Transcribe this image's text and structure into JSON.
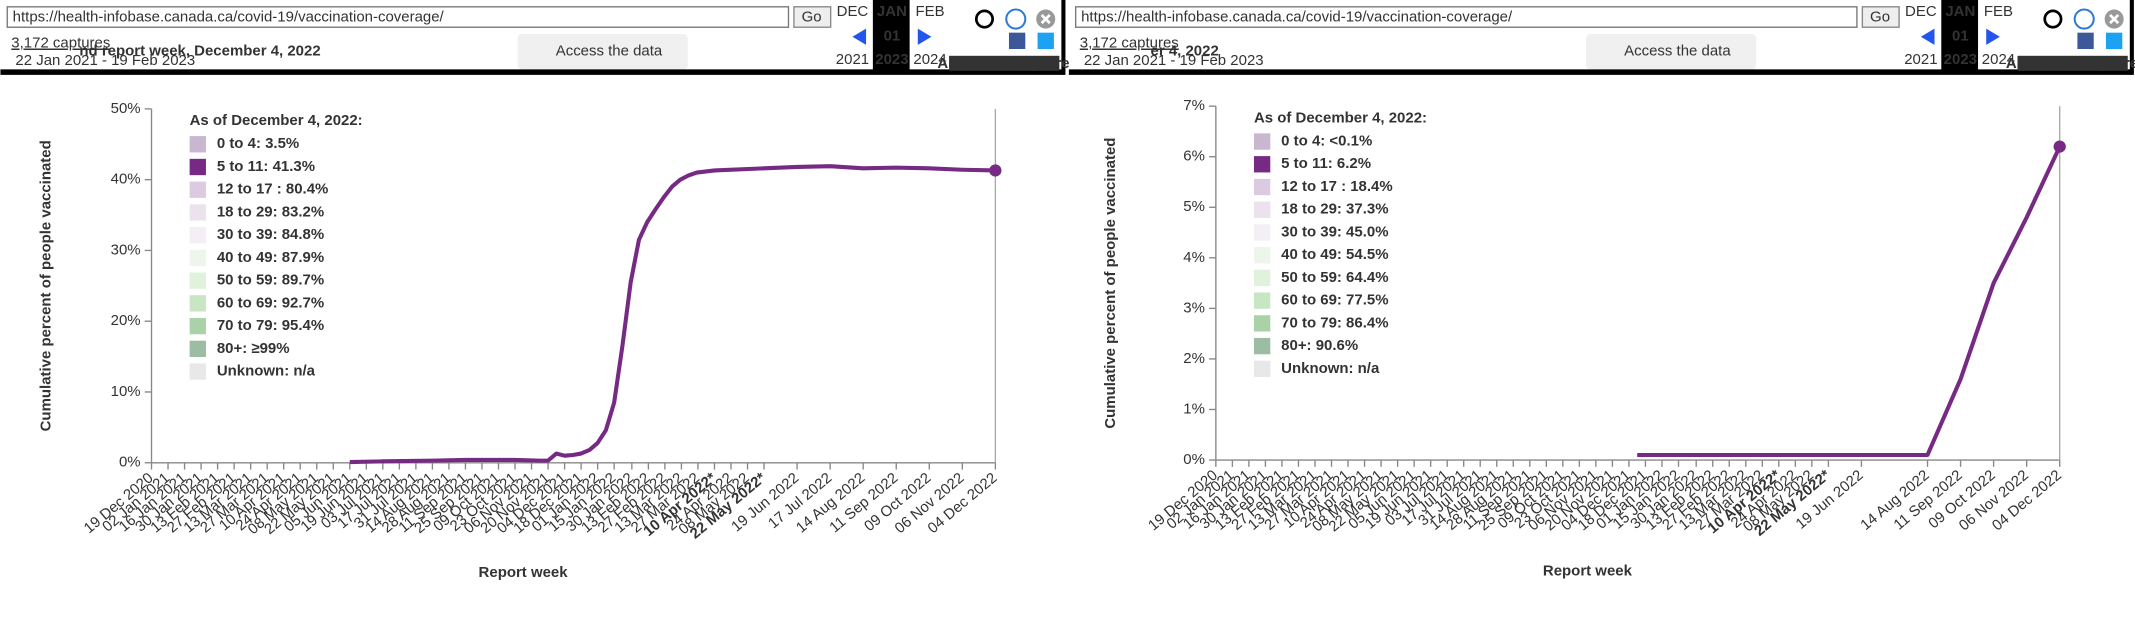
{
  "toolbars": [
    {
      "url": "https://health-infobase.canada.ca/covid-19/vaccination-coverage/",
      "go": "Go",
      "captures": "3,172 captures",
      "range": "22 Jan 2021 - 19 Feb 2023",
      "months": [
        "DEC",
        "JAN",
        "FEB"
      ],
      "day": "01",
      "years": [
        "2021",
        "2023",
        "2024"
      ],
      "about": "About this capture",
      "heading": "nd report week, December 4, 2022",
      "access": "Access the data"
    },
    {
      "url": "https://health-infobase.canada.ca/covid-19/vaccination-coverage/",
      "go": "Go",
      "captures": "3,172 captures",
      "range": "22 Jan 2021 - 19 Feb 2023",
      "months": [
        "DEC",
        "JAN",
        "FEB"
      ],
      "day": "01",
      "years": [
        "2021",
        "2023",
        "2024"
      ],
      "about": "About this capture",
      "heading": "er 4, 2022",
      "access": "Access the data"
    }
  ],
  "chart_data": [
    {
      "type": "line",
      "y_label": "Cumulative percent of people vaccinated",
      "x_label": "Report week",
      "legend_title": "As of December 4, 2022:",
      "legend": [
        {
          "label": "0 to 4: 3.5%",
          "color": "#c9b6cf",
          "active": false
        },
        {
          "label": "5 to 11: 41.3%",
          "color": "#762a83",
          "active": true
        },
        {
          "label": "12 to 17 : 80.4%",
          "color": "#dccbe0",
          "active": false
        },
        {
          "label": "18 to 29: 83.2%",
          "color": "#ece2ee",
          "active": false
        },
        {
          "label": "30 to 39: 84.8%",
          "color": "#f4eff4",
          "active": false
        },
        {
          "label": "40 to 49: 87.9%",
          "color": "#eef6ec",
          "active": false
        },
        {
          "label": "50 to 59: 89.7%",
          "color": "#e0f1dc",
          "active": false
        },
        {
          "label": "60 to 69: 92.7%",
          "color": "#c8e6c3",
          "active": false
        },
        {
          "label": "70 to 79: 95.4%",
          "color": "#a9d2a9",
          "active": false
        },
        {
          "label": "80+: ≥99%",
          "color": "#9dbca4",
          "active": false
        },
        {
          "label": "Unknown: n/a",
          "color": "#e8e8e8",
          "active": false
        }
      ],
      "x": [
        "2021-06-05",
        "2021-07-03",
        "2021-08-14",
        "2021-09-11",
        "2021-10-23",
        "2021-11-13",
        "2021-11-20",
        "2021-11-27",
        "2021-12-04",
        "2021-12-11",
        "2021-12-18",
        "2021-12-25",
        "2022-01-01",
        "2022-01-08",
        "2022-01-15",
        "2022-01-22",
        "2022-01-29",
        "2022-02-05",
        "2022-02-12",
        "2022-02-19",
        "2022-02-26",
        "2022-03-05",
        "2022-03-12",
        "2022-03-19",
        "2022-03-26",
        "2022-04-10",
        "2022-05-22",
        "2022-06-19",
        "2022-07-17",
        "2022-08-14",
        "2022-09-11",
        "2022-10-09",
        "2022-11-06",
        "2022-12-04"
      ],
      "series": [
        {
          "color": "#762a83",
          "values": [
            0.1,
            0.2,
            0.3,
            0.4,
            0.4,
            0.3,
            0.3,
            1.3,
            1.0,
            1.1,
            1.3,
            1.8,
            2.8,
            4.6,
            8.5,
            16.5,
            25.5,
            31.5,
            34,
            35.8,
            37.5,
            39,
            40,
            40.6,
            41,
            41.3,
            41.6,
            41.8,
            41.9,
            41.6,
            41.7,
            41.6,
            41.4,
            41.3
          ]
        }
      ],
      "xlim": [
        "2020-12-19",
        "2022-12-04"
      ],
      "xticks": [
        {
          "value": "2020-12-19",
          "label": "19 Dec 2020"
        },
        {
          "value": "2021-01-02",
          "label": "02 Jan 2021"
        },
        {
          "value": "2021-01-16",
          "label": "16 Jan 2021"
        },
        {
          "value": "2021-01-30",
          "label": "30 Jan 2021"
        },
        {
          "value": "2021-02-13",
          "label": "13 Feb 2021"
        },
        {
          "value": "2021-02-27",
          "label": "27 Feb 2021"
        },
        {
          "value": "2021-03-13",
          "label": "13 Mar 2021"
        },
        {
          "value": "2021-03-27",
          "label": "27 Mar 2021"
        },
        {
          "value": "2021-04-10",
          "label": "10 Apr 2021"
        },
        {
          "value": "2021-04-24",
          "label": "24 Apr 2021"
        },
        {
          "value": "2021-05-08",
          "label": "08 May 2021"
        },
        {
          "value": "2021-05-22",
          "label": "22 May 2021"
        },
        {
          "value": "2021-06-05",
          "label": "05 Jun 2021"
        },
        {
          "value": "2021-06-19",
          "label": "19 Jun 2021"
        },
        {
          "value": "2021-07-03",
          "label": "03 Jul 2021"
        },
        {
          "value": "2021-07-17",
          "label": "17 Jul 2021"
        },
        {
          "value": "2021-07-31",
          "label": "31 Jul 2021"
        },
        {
          "value": "2021-08-14",
          "label": "14 Aug 2021"
        },
        {
          "value": "2021-08-28",
          "label": "28 Aug 2021"
        },
        {
          "value": "2021-09-11",
          "label": "11 Sep 2021"
        },
        {
          "value": "2021-09-25",
          "label": "25 Sep 2021"
        },
        {
          "value": "2021-10-09",
          "label": "09 Oct 2021"
        },
        {
          "value": "2021-10-23",
          "label": "23 Oct 2021"
        },
        {
          "value": "2021-11-06",
          "label": "06 Nov 2021"
        },
        {
          "value": "2021-11-20",
          "label": "20 Nov 2021"
        },
        {
          "value": "2021-12-04",
          "label": "04 Dec 2021"
        },
        {
          "value": "2021-12-18",
          "label": "18 Dec 2021"
        },
        {
          "value": "2022-01-01",
          "label": "01 Jan 2022"
        },
        {
          "value": "2022-01-15",
          "label": "15 Jan 2022"
        },
        {
          "value": "2022-01-30",
          "label": "30 Jan 2022"
        },
        {
          "value": "2022-02-13",
          "label": "13 Feb 2022"
        },
        {
          "value": "2022-02-27",
          "label": "27 Feb 2022"
        },
        {
          "value": "2022-03-13",
          "label": "13 Mar 2022"
        },
        {
          "value": "2022-03-27",
          "label": "27 Mar 2022"
        },
        {
          "value": "2022-04-10",
          "label": "10 Apr 2022*"
        },
        {
          "value": "2022-04-24",
          "label": "24 Apr 2022"
        },
        {
          "value": "2022-05-08",
          "label": "08 May 2022"
        },
        {
          "value": "2022-05-22",
          "label": "22 May 2022*"
        },
        {
          "value": "2022-06-19",
          "label": "19 Jun 2022"
        },
        {
          "value": "2022-07-17",
          "label": "17 Jul 2022"
        },
        {
          "value": "2022-08-14",
          "label": "14 Aug 2022"
        },
        {
          "value": "2022-09-11",
          "label": "11 Sep 2022"
        },
        {
          "value": "2022-10-09",
          "label": "09 Oct 2022"
        },
        {
          "value": "2022-11-06",
          "label": "06 Nov 2022"
        },
        {
          "value": "2022-12-04",
          "label": "04 Dec 2022"
        }
      ],
      "ylim": [
        0,
        50
      ],
      "yticks": [
        {
          "value": 0,
          "label": "0%"
        },
        {
          "value": 10,
          "label": "10%"
        },
        {
          "value": 20,
          "label": "20%"
        },
        {
          "value": 30,
          "label": "30%"
        },
        {
          "value": 40,
          "label": "40%"
        },
        {
          "value": 50,
          "label": "50%"
        }
      ],
      "grid": false
    },
    {
      "type": "line",
      "y_label": "Cumulative percent of people vaccinated",
      "x_label": "Report week",
      "legend_title": "As of December 4, 2022:",
      "legend": [
        {
          "label": "0 to 4: <0.1%",
          "color": "#c9b6cf",
          "active": false
        },
        {
          "label": "5 to 11: 6.2%",
          "color": "#762a83",
          "active": true
        },
        {
          "label": "12 to 17 : 18.4%",
          "color": "#dccbe0",
          "active": false
        },
        {
          "label": "18 to 29: 37.3%",
          "color": "#ece2ee",
          "active": false
        },
        {
          "label": "30 to 39: 45.0%",
          "color": "#f4eff4",
          "active": false
        },
        {
          "label": "40 to 49: 54.5%",
          "color": "#eef6ec",
          "active": false
        },
        {
          "label": "50 to 59: 64.4%",
          "color": "#e0f1dc",
          "active": false
        },
        {
          "label": "60 to 69: 77.5%",
          "color": "#c8e6c3",
          "active": false
        },
        {
          "label": "70 to 79: 86.4%",
          "color": "#a9d2a9",
          "active": false
        },
        {
          "label": "80+: 90.6%",
          "color": "#9dbca4",
          "active": false
        },
        {
          "label": "Unknown: n/a",
          "color": "#e8e8e8",
          "active": false
        }
      ],
      "x": [
        "2021-12-11",
        "2022-03-13",
        "2022-05-22",
        "2022-08-14",
        "2022-09-11",
        "2022-10-09",
        "2022-11-06",
        "2022-12-04"
      ],
      "series": [
        {
          "color": "#762a83",
          "values": [
            0.1,
            0.1,
            0.1,
            0.1,
            1.6,
            3.5,
            4.8,
            6.2
          ]
        }
      ],
      "xlim": [
        "2020-12-19",
        "2022-12-04"
      ],
      "xticks": [
        {
          "value": "2020-12-19",
          "label": "19 Dec 2020"
        },
        {
          "value": "2021-01-02",
          "label": "02 Jan 2021"
        },
        {
          "value": "2021-01-16",
          "label": "16 Jan 2021"
        },
        {
          "value": "2021-01-30",
          "label": "30 Jan 2021"
        },
        {
          "value": "2021-02-13",
          "label": "13 Feb 2021"
        },
        {
          "value": "2021-02-27",
          "label": "27 Feb 2021"
        },
        {
          "value": "2021-03-13",
          "label": "13 Mar 2021"
        },
        {
          "value": "2021-03-27",
          "label": "27 Mar 2021"
        },
        {
          "value": "2021-04-10",
          "label": "10 Apr 2021"
        },
        {
          "value": "2021-04-24",
          "label": "24 Apr 2021"
        },
        {
          "value": "2021-05-08",
          "label": "08 May 2021"
        },
        {
          "value": "2021-05-22",
          "label": "22 May 2021"
        },
        {
          "value": "2021-06-05",
          "label": "05 Jun 2021"
        },
        {
          "value": "2021-06-19",
          "label": "19 Jun 2021"
        },
        {
          "value": "2021-07-03",
          "label": "03 Jul 2021"
        },
        {
          "value": "2021-07-17",
          "label": "17 Jul 2021"
        },
        {
          "value": "2021-07-31",
          "label": "31 Jul 2021"
        },
        {
          "value": "2021-08-14",
          "label": "14 Aug 2021"
        },
        {
          "value": "2021-08-28",
          "label": "28 Aug 2021"
        },
        {
          "value": "2021-09-11",
          "label": "11 Sep 2021"
        },
        {
          "value": "2021-09-25",
          "label": "25 Sep 2021"
        },
        {
          "value": "2021-10-09",
          "label": "09 Oct 2021"
        },
        {
          "value": "2021-10-23",
          "label": "23 Oct 2021"
        },
        {
          "value": "2021-11-06",
          "label": "06 Nov 2021"
        },
        {
          "value": "2021-11-20",
          "label": "20 Nov 2021"
        },
        {
          "value": "2021-12-04",
          "label": "04 Dec 2021"
        },
        {
          "value": "2021-12-18",
          "label": "18 Dec 2021"
        },
        {
          "value": "2022-01-01",
          "label": "01 Jan 2022"
        },
        {
          "value": "2022-01-15",
          "label": "15 Jan 2022"
        },
        {
          "value": "2022-01-30",
          "label": "30 Jan 2022"
        },
        {
          "value": "2022-02-13",
          "label": "13 Feb 2022"
        },
        {
          "value": "2022-02-27",
          "label": "27 Feb 2022"
        },
        {
          "value": "2022-03-13",
          "label": "13 Mar 2022"
        },
        {
          "value": "2022-03-27",
          "label": "27 Mar 2022"
        },
        {
          "value": "2022-04-10",
          "label": "10 Apr 2022*"
        },
        {
          "value": "2022-04-24",
          "label": "24 Apr 2022"
        },
        {
          "value": "2022-05-08",
          "label": "08 May 2022"
        },
        {
          "value": "2022-05-22",
          "label": "22 May 2022*"
        },
        {
          "value": "2022-06-19",
          "label": "19 Jun 2022"
        },
        {
          "value": "2022-08-14",
          "label": "14 Aug 2022"
        },
        {
          "value": "2022-09-11",
          "label": "11 Sep 2022"
        },
        {
          "value": "2022-10-09",
          "label": "09 Oct 2022"
        },
        {
          "value": "2022-11-06",
          "label": "06 Nov 2022"
        },
        {
          "value": "2022-12-04",
          "label": "04 Dec 2022"
        }
      ],
      "ylim": [
        0,
        7
      ],
      "yticks": [
        {
          "value": 0,
          "label": "0%"
        },
        {
          "value": 1,
          "label": "1%"
        },
        {
          "value": 2,
          "label": "2%"
        },
        {
          "value": 3,
          "label": "3%"
        },
        {
          "value": 4,
          "label": "4%"
        },
        {
          "value": 5,
          "label": "5%"
        },
        {
          "value": 6,
          "label": "6%"
        },
        {
          "value": 7,
          "label": "7%"
        }
      ],
      "grid": false
    }
  ]
}
